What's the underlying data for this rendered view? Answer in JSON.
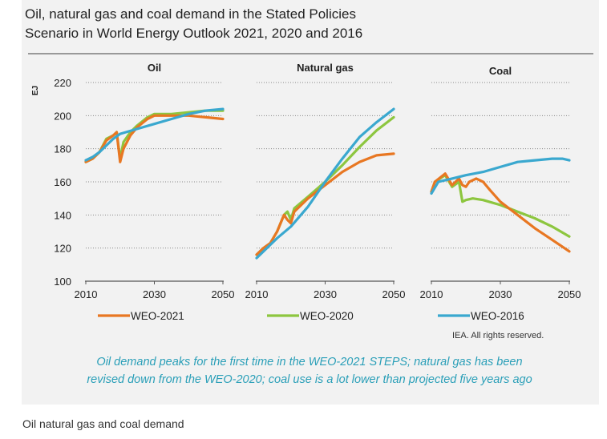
{
  "title_line1": "Oil, natural gas and coal demand in the Stated Policies",
  "title_line2": "Scenario in World Energy Outlook 2021, 2020 and 2016",
  "credit": "IEA. All rights reserved.",
  "caption_line1": "Oil demand peaks for the first time in the WEO-2021 STEPS; natural gas has been",
  "caption_line2": "revised down from the WEO-2020; coal use is a lot lower than projected five years ago",
  "footer_caption": "Oil natural gas and coal demand",
  "colors": {
    "WEO-2021": "#e87722",
    "WEO-2020": "#8dc63f",
    "WEO-2016": "#3aa8cf"
  },
  "chart_data": {
    "type": "line",
    "ylabel": "EJ",
    "ylim": [
      100,
      220
    ],
    "yticks": [
      "100",
      "120",
      "140",
      "160",
      "180",
      "200",
      "220"
    ],
    "xticks": [
      "2010",
      "2030",
      "2050"
    ],
    "xlim": [
      2010,
      2050
    ],
    "legend": [
      "WEO-2021",
      "WEO-2020",
      "WEO-2016"
    ],
    "panels": [
      {
        "title": "Oil",
        "series": [
          {
            "name": "WEO-2021",
            "points": [
              [
                2010,
                172
              ],
              [
                2012,
                174
              ],
              [
                2014,
                178
              ],
              [
                2016,
                185
              ],
              [
                2018,
                188
              ],
              [
                2019,
                190
              ],
              [
                2020,
                172
              ],
              [
                2021,
                180
              ],
              [
                2023,
                188
              ],
              [
                2025,
                193
              ],
              [
                2028,
                198
              ],
              [
                2030,
                200
              ],
              [
                2035,
                200
              ],
              [
                2040,
                200
              ],
              [
                2045,
                199
              ],
              [
                2050,
                198
              ]
            ]
          },
          {
            "name": "WEO-2020",
            "points": [
              [
                2010,
                172
              ],
              [
                2012,
                174
              ],
              [
                2014,
                178
              ],
              [
                2016,
                186
              ],
              [
                2018,
                188
              ],
              [
                2019,
                190
              ],
              [
                2020,
                174
              ],
              [
                2021,
                184
              ],
              [
                2023,
                190
              ],
              [
                2025,
                194
              ],
              [
                2028,
                199
              ],
              [
                2030,
                201
              ],
              [
                2035,
                201
              ],
              [
                2040,
                202
              ],
              [
                2045,
                203
              ],
              [
                2050,
                203
              ]
            ]
          },
          {
            "name": "WEO-2016",
            "points": [
              [
                2010,
                173
              ],
              [
                2012,
                175
              ],
              [
                2014,
                178
              ],
              [
                2016,
                182
              ],
              [
                2018,
                186
              ],
              [
                2020,
                189
              ],
              [
                2025,
                192
              ],
              [
                2030,
                195
              ],
              [
                2035,
                198
              ],
              [
                2040,
                201
              ],
              [
                2045,
                203
              ],
              [
                2050,
                204
              ]
            ]
          }
        ]
      },
      {
        "title": "Natural gas",
        "series": [
          {
            "name": "WEO-2021",
            "points": [
              [
                2010,
                116
              ],
              [
                2012,
                120
              ],
              [
                2014,
                123
              ],
              [
                2016,
                130
              ],
              [
                2018,
                140
              ],
              [
                2019,
                137
              ],
              [
                2020,
                135
              ],
              [
                2021,
                142
              ],
              [
                2025,
                150
              ],
              [
                2030,
                158
              ],
              [
                2035,
                166
              ],
              [
                2040,
                172
              ],
              [
                2045,
                176
              ],
              [
                2050,
                177
              ]
            ]
          },
          {
            "name": "WEO-2020",
            "points": [
              [
                2010,
                116
              ],
              [
                2012,
                120
              ],
              [
                2014,
                123
              ],
              [
                2016,
                130
              ],
              [
                2018,
                140
              ],
              [
                2019,
                142
              ],
              [
                2020,
                137
              ],
              [
                2021,
                144
              ],
              [
                2025,
                151
              ],
              [
                2030,
                160
              ],
              [
                2035,
                170
              ],
              [
                2040,
                181
              ],
              [
                2045,
                191
              ],
              [
                2050,
                199
              ]
            ]
          },
          {
            "name": "WEO-2016",
            "points": [
              [
                2010,
                114
              ],
              [
                2013,
                120
              ],
              [
                2016,
                126
              ],
              [
                2020,
                133
              ],
              [
                2025,
                145
              ],
              [
                2030,
                160
              ],
              [
                2035,
                174
              ],
              [
                2040,
                187
              ],
              [
                2045,
                196
              ],
              [
                2050,
                204
              ]
            ]
          }
        ]
      },
      {
        "title": "Coal",
        "series": [
          {
            "name": "WEO-2021",
            "points": [
              [
                2010,
                154
              ],
              [
                2011,
                160
              ],
              [
                2014,
                165
              ],
              [
                2016,
                158
              ],
              [
                2018,
                162
              ],
              [
                2019,
                158
              ],
              [
                2020,
                157
              ],
              [
                2021,
                160
              ],
              [
                2023,
                162
              ],
              [
                2025,
                160
              ],
              [
                2027,
                155
              ],
              [
                2030,
                148
              ],
              [
                2035,
                140
              ],
              [
                2040,
                132
              ],
              [
                2045,
                125
              ],
              [
                2050,
                118
              ]
            ]
          },
          {
            "name": "WEO-2020",
            "points": [
              [
                2010,
                154
              ],
              [
                2011,
                160
              ],
              [
                2014,
                164
              ],
              [
                2016,
                157
              ],
              [
                2018,
                160
              ],
              [
                2019,
                148
              ],
              [
                2020,
                149
              ],
              [
                2022,
                150
              ],
              [
                2025,
                149
              ],
              [
                2030,
                146
              ],
              [
                2035,
                142
              ],
              [
                2040,
                138
              ],
              [
                2045,
                133
              ],
              [
                2050,
                127
              ]
            ]
          },
          {
            "name": "WEO-2016",
            "points": [
              [
                2010,
                153
              ],
              [
                2012,
                160
              ],
              [
                2014,
                161
              ],
              [
                2016,
                162
              ],
              [
                2020,
                164
              ],
              [
                2025,
                166
              ],
              [
                2030,
                169
              ],
              [
                2035,
                172
              ],
              [
                2040,
                173
              ],
              [
                2045,
                174
              ],
              [
                2048,
                174
              ],
              [
                2050,
                173
              ]
            ]
          }
        ]
      }
    ]
  }
}
